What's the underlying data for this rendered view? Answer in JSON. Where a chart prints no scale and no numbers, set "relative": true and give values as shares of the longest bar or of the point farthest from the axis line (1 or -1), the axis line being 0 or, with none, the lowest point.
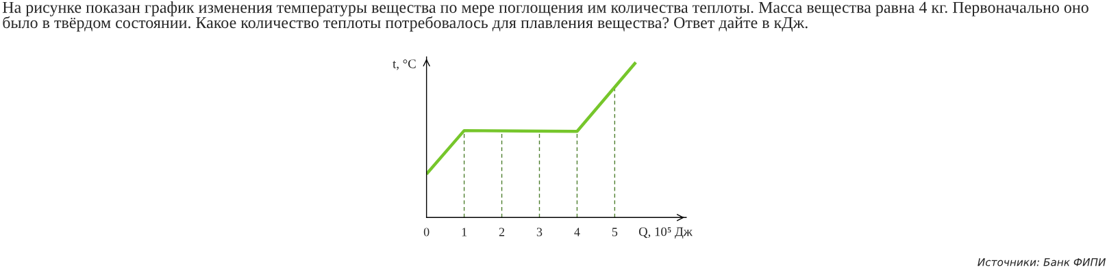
{
  "chart_data": {
    "type": "line",
    "title": "На рисунке показан график изменения температуры вещества по мере поглощения им количества теплоты. Масса вещества равна 4 кг. Первоначально оно было в твёрдом состоянии. Какое количество теплоты потребовалось для плавления вещества? Ответ дайте в кДж.",
    "xlabel": "Q, 10⁵ Дж",
    "ylabel": "t, °C",
    "relative": true,
    "xlim": [
      0,
      6.9
    ],
    "xticks": [
      0,
      1,
      2,
      3,
      4,
      5
    ],
    "tick_labels": "x",
    "line_style": "solid",
    "series": [
      {
        "color": "#76c62b",
        "x": [
          0,
          1,
          4,
          5.56
        ],
        "values": [
          0.28,
          0.56,
          0.555,
          1
        ]
      }
    ],
    "ref_lines": [
      {
        "axis": "x",
        "value": 1,
        "color": "#4b7d2b",
        "line_style": "dashed"
      },
      {
        "axis": "x",
        "value": 2,
        "color": "#4b7d2b",
        "line_style": "dashed"
      },
      {
        "axis": "x",
        "value": 3,
        "color": "#4b7d2b",
        "line_style": "dashed"
      },
      {
        "axis": "x",
        "value": 4,
        "color": "#4b7d2b",
        "line_style": "dashed"
      },
      {
        "axis": "x",
        "value": 5,
        "color": "#4b7d2b",
        "line_style": "dashed"
      }
    ],
    "annotations": [
      "Источники: Банк ФИПИ"
    ]
  }
}
